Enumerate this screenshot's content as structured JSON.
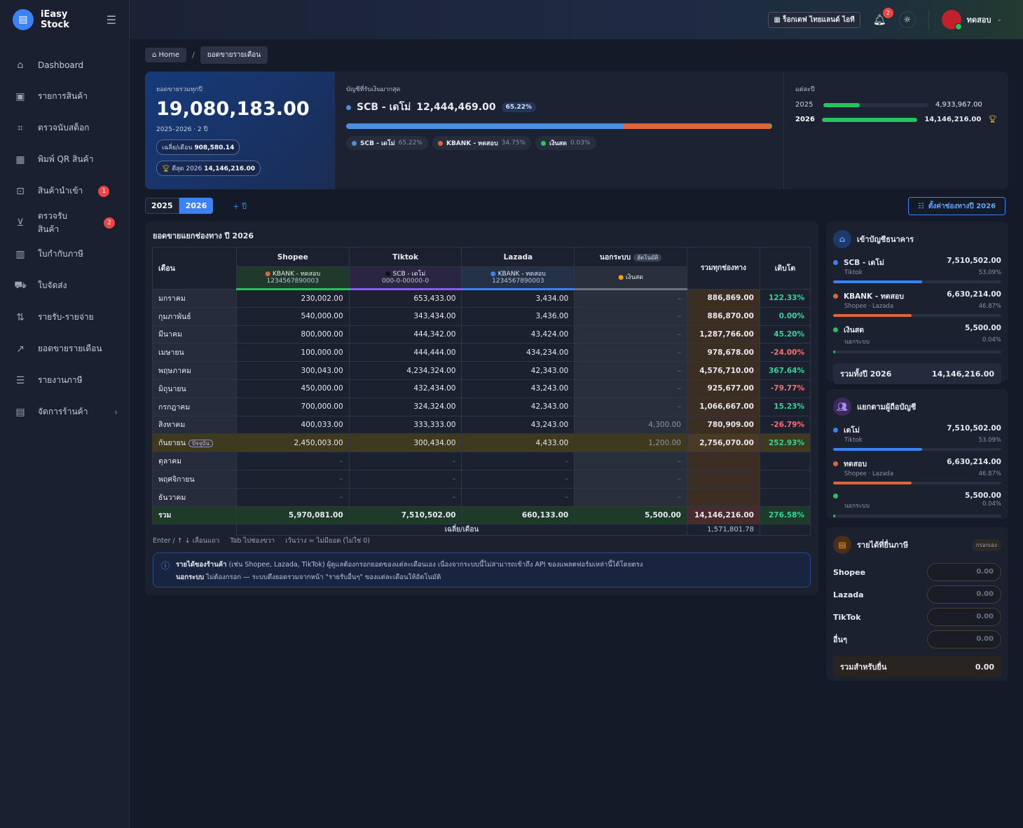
{
  "app": {
    "name": "iEasy Stock"
  },
  "sidebar": {
    "items": [
      {
        "label": "Dashboard",
        "icon": "home-icon"
      },
      {
        "label": "รายการสินค้า",
        "icon": "box-icon"
      },
      {
        "label": "ตรวจนับสต็อก",
        "icon": "scan-icon"
      },
      {
        "label": "พิมพ์ QR สินค้า",
        "icon": "qr-icon"
      },
      {
        "label": "สินค้านำเข้า",
        "icon": "import-icon",
        "badge": "1"
      },
      {
        "label": "ตรวจรับสินค้า",
        "icon": "inbox-icon",
        "badge": "2"
      },
      {
        "label": "ใบกำกับภาษี",
        "icon": "receipt-icon"
      },
      {
        "label": "ใบจัดส่ง",
        "icon": "truck-icon"
      },
      {
        "label": "รายรับ-รายจ่าย",
        "icon": "arrows-icon"
      },
      {
        "label": "ยอดขายรายเดือน",
        "icon": "trend-icon"
      },
      {
        "label": "รายงานภาษี",
        "icon": "report-icon"
      },
      {
        "label": "จัดการร้านค้า",
        "icon": "store-icon"
      }
    ]
  },
  "topbar": {
    "shop": "ร็อกเดฟ ไทยแลนด์ ไอที",
    "notif_count": "2",
    "user": "ทดสอบ"
  },
  "breadcrumb": {
    "home": "Home",
    "current": "ยอดขายรายเดือน"
  },
  "hero": {
    "total_label": "ยอดขายรวมทุกปี",
    "total": "19,080,183.00",
    "range": "2025–2026 · 2 ปี",
    "avg_label": "เฉลี่ย/เดือน",
    "avg": "908,580.14",
    "best_label": "ดีสุด 2026",
    "best": "14,146,216.00",
    "top_label": "บัญชีที่รับเงินมากสุด",
    "top_name": "SCB - เดโม่",
    "top_amount": "12,444,469.00",
    "top_pct": "65.22%",
    "shares": [
      {
        "name": "SCB - เดโม่",
        "pct": "65.22%",
        "value": 65.22,
        "color": "#4a8fe0"
      },
      {
        "name": "KBANK - ทดสอบ",
        "pct": "34.75%",
        "value": 34.75,
        "color": "#e0643a"
      },
      {
        "name": "เงินสด",
        "pct": "0.03%",
        "value": 0.03,
        "color": "#22c55e"
      }
    ],
    "yearly_label": "แต่ละปี",
    "yearly": [
      {
        "year": "2025",
        "amount": "4,933,967.00",
        "fill": 0.349
      },
      {
        "year": "2026",
        "amount": "14,146,216.00",
        "fill": 1.0
      }
    ]
  },
  "tabs": {
    "y1": "2025",
    "y2": "2026",
    "add": "+ ปี",
    "config": "ตั้งค่าช่องทางปี 2026"
  },
  "table": {
    "title": "ยอดขายแยกช่องทาง ปี 2026",
    "h_month": "เดือน",
    "h_total": "รวมทุกช่องทาง",
    "h_growth": "เติบโต",
    "channels": [
      {
        "name": "Shopee",
        "acct": "KBANK - ทดสอบ",
        "num": "1234567890003",
        "dot": "#e0643a"
      },
      {
        "name": "Tiktok",
        "acct": "SCB - เดโม่",
        "num": "000-0-00000-0",
        "dot": "#111111"
      },
      {
        "name": "Lazada",
        "acct": "KBANK - ทดสอบ",
        "num": "1234567890003",
        "dot": "#3b82f6"
      },
      {
        "name": "นอกระบบ",
        "tag": "อัตโนมัติ",
        "acct": "เงินสด",
        "dot": "#f59e0b"
      }
    ],
    "rows": [
      [
        "มกราคม",
        "230,002.00",
        "653,433.00",
        "3,434.00",
        "–",
        "886,869.00",
        "122.33%"
      ],
      [
        "กุมภาพันธ์",
        "540,000.00",
        "343,434.00",
        "3,436.00",
        "–",
        "886,870.00",
        "0.00%"
      ],
      [
        "มีนาคม",
        "800,000.00",
        "444,342.00",
        "43,424.00",
        "–",
        "1,287,766.00",
        "45.20%"
      ],
      [
        "เมษายน",
        "100,000.00",
        "444,444.00",
        "434,234.00",
        "–",
        "978,678.00",
        "-24.00%"
      ],
      [
        "พฤษภาคม",
        "300,043.00",
        "4,234,324.00",
        "42,343.00",
        "–",
        "4,576,710.00",
        "367.64%"
      ],
      [
        "มิถุนายน",
        "450,000.00",
        "432,434.00",
        "43,243.00",
        "–",
        "925,677.00",
        "-79.77%"
      ],
      [
        "กรกฎาคม",
        "700,000.00",
        "324,324.00",
        "42,343.00",
        "–",
        "1,066,667.00",
        "15.23%"
      ],
      [
        "สิงหาคม",
        "400,033.00",
        "333,333.00",
        "43,243.00",
        "4,300.00",
        "780,909.00",
        "-26.79%"
      ],
      [
        "กันยายน",
        "2,450,003.00",
        "300,434.00",
        "4,433.00",
        "1,200.00",
        "2,756,070.00",
        "252.93%"
      ],
      [
        "ตุลาคม",
        "–",
        "–",
        "–",
        "–",
        "",
        ""
      ],
      [
        "พฤศจิกายน",
        "–",
        "–",
        "–",
        "–",
        "",
        ""
      ],
      [
        "ธันวาคม",
        "–",
        "–",
        "–",
        "–",
        "",
        ""
      ]
    ],
    "current_tag": "ปัจจุบัน",
    "total_row": [
      "รวม",
      "5,970,081.00",
      "7,510,502.00",
      "660,133.00",
      "5,500.00",
      "14,146,216.00",
      "276.58%"
    ],
    "avg_label": "เฉลี่ย/เดือน",
    "avg_value": "1,571,801.78",
    "hint": "Enter / ↑ ↓ เลื่อนแถว     Tab ไปช่องขวา     เว้นว่าง = ไม่มียอด (ไม่ใช่ 0)",
    "info_l1_b": "รายได้ของร้านค้า",
    "info_l1": " (เช่น Shopee, Lazada, TikTok) ผู้ดูแลต้องกรอกยอดของแต่ละเดือนเอง เนื่องจากระบบนี้ไม่สามารถเข้าถึง API ของแพลตฟอร์มเหล่านี้ได้โดยตรง",
    "info_l2_b": "นอกระบบ",
    "info_l2": " ไม่ต้องกรอก — ระบบดึงยอดรวมจากหน้า \"รายรับอื่นๆ\" ของแต่ละเดือนให้อัตโนมัติ"
  },
  "bank_panel": {
    "title": "เข้าบัญชีธนาคาร",
    "items": [
      {
        "name": "SCB - เดโม่",
        "sub": "Tiktok",
        "amount": "7,510,502.00",
        "pct": "53.09%",
        "fill": 0.5309,
        "color": "#3b82f6"
      },
      {
        "name": "KBANK - ทดสอบ",
        "sub": "Shopee · Lazada",
        "amount": "6,630,214.00",
        "pct": "46.87%",
        "fill": 0.4687,
        "color": "#e0643a"
      },
      {
        "name": "เงินสด",
        "sub": "นอกระบบ",
        "amount": "5,500.00",
        "pct": "0.04%",
        "fill": 0.0004,
        "color": "#22c55e"
      }
    ],
    "total_label": "รวมทั้งปี 2026",
    "total": "14,146,216.00"
  },
  "holder_panel": {
    "title": "แยกตามผู้ถือบัญชี",
    "items": [
      {
        "name": "เดโม่",
        "sub": "Tiktok",
        "amount": "7,510,502.00",
        "pct": "53.09%",
        "fill": 0.5309,
        "color": "#3b82f6"
      },
      {
        "name": "ทดสอบ",
        "sub": "Shopee · Lazada",
        "amount": "6,630,214.00",
        "pct": "46.87%",
        "fill": 0.4687,
        "color": "#e0643a"
      },
      {
        "name": "",
        "sub": "นอกระบบ",
        "amount": "5,500.00",
        "pct": "0.04%",
        "fill": 0.0004,
        "color": "#22c55e"
      }
    ]
  },
  "other_panel": {
    "title": "รายได้ที่ยื่นภาษี",
    "tag": "กรอกเอง",
    "rows": [
      {
        "label": "Shopee",
        "placeholder": "0.00"
      },
      {
        "label": "Lazada",
        "placeholder": "0.00"
      },
      {
        "label": "TikTok",
        "placeholder": "0.00"
      },
      {
        "label": "อื่นๆ",
        "placeholder": "0.00"
      }
    ],
    "total_label": "รวมสำหรับยื่น",
    "total": "0.00"
  }
}
